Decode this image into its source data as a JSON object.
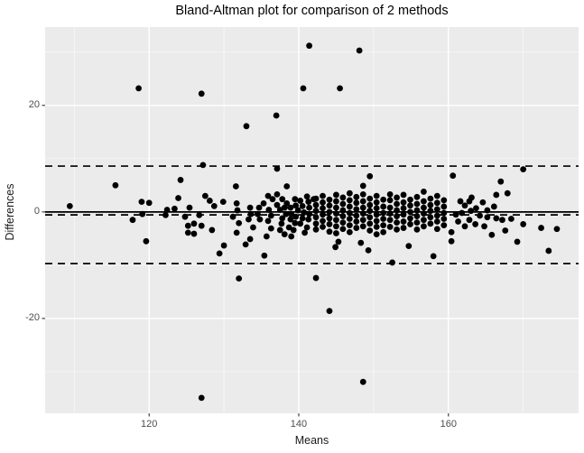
{
  "chart_data": {
    "type": "scatter",
    "title": "Bland-Altman plot for comparison of 2 methods",
    "xlabel": "Means",
    "ylabel": "Differences",
    "xlim": [
      106.1,
      177.4
    ],
    "ylim": [
      -37.8,
      34.7
    ],
    "x_major_ticks": [
      120,
      140,
      160
    ],
    "x_minor_ticks": [
      110,
      130,
      150,
      170
    ],
    "y_major_ticks": [
      20,
      0,
      -20
    ],
    "y_minor_ticks": [
      30,
      10,
      -10,
      -30
    ],
    "grid": true,
    "legend_position": "none",
    "reference_lines": {
      "zero_line": {
        "y": 0,
        "style": "solid"
      },
      "mean_difference": {
        "y": -0.55,
        "style": "dashed"
      },
      "upper_limit_of_agreement": {
        "y": 8.6,
        "style": "dashed"
      },
      "lower_limit_of_agreement": {
        "y": -9.7,
        "style": "dashed"
      }
    },
    "points": [
      [
        141.4,
        31.2
      ],
      [
        148.1,
        30.3
      ],
      [
        118.6,
        23.2
      ],
      [
        140.6,
        23.2
      ],
      [
        145.5,
        23.2
      ],
      [
        127.0,
        22.2
      ],
      [
        137.0,
        18.1
      ],
      [
        133.0,
        16.1
      ],
      [
        127.2,
        8.8
      ],
      [
        137.1,
        8.1
      ],
      [
        170.0,
        8.0
      ],
      [
        149.5,
        6.7
      ],
      [
        160.6,
        6.8
      ],
      [
        167.0,
        5.7
      ],
      [
        124.2,
        6.0
      ],
      [
        115.5,
        5.0
      ],
      [
        131.6,
        4.8
      ],
      [
        138.4,
        4.8
      ],
      [
        148.6,
        4.9
      ],
      [
        109.4,
        1.1
      ],
      [
        132.0,
        -12.5
      ],
      [
        142.3,
        -12.4
      ],
      [
        144.1,
        -18.6
      ],
      [
        148.6,
        -31.9
      ],
      [
        127.0,
        -34.9
      ],
      [
        152.5,
        -9.5
      ],
      [
        158.0,
        -8.3
      ],
      [
        135.4,
        -8.2
      ],
      [
        129.4,
        -7.8
      ],
      [
        173.4,
        -7.3
      ],
      [
        149.3,
        -7.2
      ],
      [
        119.6,
        -5.5
      ],
      [
        130.0,
        -6.3
      ],
      [
        132.9,
        -6.1
      ],
      [
        144.9,
        -6.6
      ],
      [
        145.3,
        -5.6
      ],
      [
        148.3,
        -5.8
      ],
      [
        154.7,
        -6.4
      ],
      [
        169.2,
        -5.6
      ],
      [
        117.8,
        -1.5
      ],
      [
        119.0,
        1.9
      ],
      [
        119.1,
        -0.4
      ],
      [
        120.0,
        1.7
      ],
      [
        122.2,
        -0.6
      ],
      [
        122.4,
        0.4
      ],
      [
        123.4,
        0.6
      ],
      [
        123.9,
        2.6
      ],
      [
        124.8,
        -0.9
      ],
      [
        125.2,
        -2.6
      ],
      [
        125.2,
        -3.9
      ],
      [
        125.4,
        0.8
      ],
      [
        126.0,
        -2.2
      ],
      [
        126.0,
        -4.1
      ],
      [
        126.7,
        -0.6
      ],
      [
        127.0,
        -2.6
      ],
      [
        127.5,
        3.0
      ],
      [
        128.1,
        2.1
      ],
      [
        128.4,
        -3.4
      ],
      [
        128.7,
        1.1
      ],
      [
        129.9,
        1.9
      ],
      [
        131.2,
        -0.9
      ],
      [
        131.7,
        1.6
      ],
      [
        131.8,
        0.3
      ],
      [
        131.7,
        -3.9
      ],
      [
        132.0,
        -2.1
      ],
      [
        133.3,
        -1.4
      ],
      [
        133.5,
        0.8
      ],
      [
        133.5,
        -5.1
      ],
      [
        133.6,
        -0.4
      ],
      [
        133.9,
        -2.9
      ],
      [
        134.5,
        -0.4
      ],
      [
        134.7,
        0.8
      ],
      [
        134.8,
        -1.4
      ],
      [
        135.3,
        1.6
      ],
      [
        135.7,
        -4.6
      ],
      [
        135.9,
        3.0
      ],
      [
        135.9,
        -1.7
      ],
      [
        136.0,
        0.4
      ],
      [
        136.3,
        -0.7
      ],
      [
        136.3,
        -3.1
      ],
      [
        136.5,
        2.4
      ],
      [
        137.1,
        3.3
      ],
      [
        137.1,
        1.3
      ],
      [
        137.5,
        0.4
      ],
      [
        137.5,
        -3.4
      ],
      [
        137.7,
        -2.2
      ],
      [
        137.8,
        2.4
      ],
      [
        137.8,
        -1.2
      ],
      [
        138.1,
        0.8
      ],
      [
        138.1,
        -4.2
      ],
      [
        138.3,
        -0.4
      ],
      [
        138.4,
        1.6
      ],
      [
        138.7,
        -2.9
      ],
      [
        138.9,
        0.8
      ],
      [
        138.9,
        -1.4
      ],
      [
        139.0,
        -0.4
      ],
      [
        139.0,
        -4.6
      ],
      [
        139.3,
        -3.4
      ],
      [
        139.5,
        2.4
      ],
      [
        139.5,
        -2.1
      ],
      [
        139.6,
        1.2
      ],
      [
        139.6,
        -0.9
      ],
      [
        139.9,
        0.3
      ],
      [
        140.2,
        2.1
      ],
      [
        140.2,
        -2.2
      ],
      [
        140.5,
        1.1
      ],
      [
        140.5,
        -1.2
      ],
      [
        140.7,
        -0.1
      ],
      [
        140.8,
        -3.9
      ],
      [
        141.1,
        2.9
      ],
      [
        141.1,
        -2.9
      ],
      [
        141.3,
        1.9
      ],
      [
        141.3,
        -1.4
      ],
      [
        141.4,
        0.8
      ],
      [
        141.4,
        -0.4
      ],
      [
        142.0,
        2.4
      ],
      [
        142.3,
        2.5
      ],
      [
        142.3,
        1.3
      ],
      [
        142.3,
        0.2
      ],
      [
        142.3,
        -1.0
      ],
      [
        142.3,
        -2.2
      ],
      [
        142.3,
        -3.3
      ],
      [
        143.2,
        3.0
      ],
      [
        143.2,
        1.8
      ],
      [
        143.2,
        0.7
      ],
      [
        143.2,
        -0.5
      ],
      [
        143.2,
        -1.7
      ],
      [
        143.2,
        -2.8
      ],
      [
        144.1,
        2.3
      ],
      [
        144.1,
        1.2
      ],
      [
        144.1,
        0.0
      ],
      [
        144.1,
        -1.2
      ],
      [
        144.1,
        -2.3
      ],
      [
        144.1,
        -3.7
      ],
      [
        145.0,
        3.2
      ],
      [
        145.0,
        2.0
      ],
      [
        145.0,
        0.8
      ],
      [
        145.0,
        -0.3
      ],
      [
        145.0,
        -1.5
      ],
      [
        145.0,
        -2.7
      ],
      [
        145.0,
        -4.0
      ],
      [
        145.9,
        2.7
      ],
      [
        145.9,
        1.5
      ],
      [
        145.9,
        0.3
      ],
      [
        145.9,
        -0.8
      ],
      [
        145.9,
        -2.0
      ],
      [
        145.9,
        -3.2
      ],
      [
        146.8,
        3.5
      ],
      [
        146.8,
        2.2
      ],
      [
        146.8,
        1.0
      ],
      [
        146.8,
        -0.2
      ],
      [
        146.8,
        -1.3
      ],
      [
        146.8,
        -2.5
      ],
      [
        146.8,
        -3.8
      ],
      [
        147.7,
        2.8
      ],
      [
        147.7,
        1.7
      ],
      [
        147.7,
        0.5
      ],
      [
        147.7,
        -0.7
      ],
      [
        147.7,
        -1.8
      ],
      [
        147.7,
        -3.0
      ],
      [
        148.6,
        3.3
      ],
      [
        148.6,
        2.0
      ],
      [
        148.6,
        0.8
      ],
      [
        148.6,
        -0.3
      ],
      [
        148.6,
        -1.5
      ],
      [
        148.6,
        -2.7
      ],
      [
        149.5,
        2.5
      ],
      [
        149.5,
        1.3
      ],
      [
        149.5,
        0.2
      ],
      [
        149.5,
        -1.0
      ],
      [
        149.5,
        -2.2
      ],
      [
        149.5,
        -3.5
      ],
      [
        150.4,
        3.0
      ],
      [
        150.4,
        1.8
      ],
      [
        150.4,
        0.7
      ],
      [
        150.4,
        -0.5
      ],
      [
        150.4,
        -1.7
      ],
      [
        150.4,
        -2.8
      ],
      [
        150.4,
        -4.2
      ],
      [
        151.3,
        2.3
      ],
      [
        151.3,
        1.0
      ],
      [
        151.3,
        -0.2
      ],
      [
        151.3,
        -1.3
      ],
      [
        151.3,
        -2.5
      ],
      [
        151.3,
        -3.8
      ],
      [
        152.2,
        3.3
      ],
      [
        152.2,
        2.2
      ],
      [
        152.2,
        0.8
      ],
      [
        152.2,
        -0.3
      ],
      [
        152.2,
        -1.5
      ],
      [
        152.2,
        -2.8
      ],
      [
        153.1,
        2.7
      ],
      [
        153.1,
        1.5
      ],
      [
        153.1,
        0.3
      ],
      [
        153.1,
        -0.8
      ],
      [
        153.1,
        -2.0
      ],
      [
        153.1,
        -3.3
      ],
      [
        154.0,
        3.2
      ],
      [
        154.0,
        1.8
      ],
      [
        154.0,
        0.7
      ],
      [
        154.0,
        -0.5
      ],
      [
        154.0,
        -1.8
      ],
      [
        154.0,
        -3.0
      ],
      [
        154.9,
        2.3
      ],
      [
        154.9,
        1.2
      ],
      [
        154.9,
        0.0
      ],
      [
        154.9,
        -1.2
      ],
      [
        154.9,
        -2.3
      ],
      [
        155.8,
        2.8
      ],
      [
        155.8,
        1.5
      ],
      [
        155.8,
        0.3
      ],
      [
        155.8,
        -0.8
      ],
      [
        155.8,
        -2.0
      ],
      [
        155.8,
        -3.3
      ],
      [
        156.7,
        3.8
      ],
      [
        156.7,
        2.0
      ],
      [
        156.7,
        0.8
      ],
      [
        156.7,
        -0.3
      ],
      [
        156.7,
        -1.5
      ],
      [
        156.7,
        -2.7
      ],
      [
        157.6,
        2.5
      ],
      [
        157.6,
        1.3
      ],
      [
        157.6,
        0.2
      ],
      [
        157.6,
        -1.0
      ],
      [
        157.6,
        -2.2
      ],
      [
        158.5,
        3.0
      ],
      [
        158.5,
        1.7
      ],
      [
        158.5,
        0.5
      ],
      [
        158.5,
        -0.7
      ],
      [
        158.5,
        -1.8
      ],
      [
        158.5,
        -3.2
      ],
      [
        159.4,
        2.2
      ],
      [
        159.4,
        1.0
      ],
      [
        159.4,
        -0.2
      ],
      [
        159.4,
        -1.3
      ],
      [
        159.4,
        -2.5
      ],
      [
        160.4,
        -3.8
      ],
      [
        160.4,
        -5.5
      ],
      [
        161.0,
        -0.5
      ],
      [
        161.3,
        -1.8
      ],
      [
        161.6,
        2.0
      ],
      [
        161.8,
        -0.2
      ],
      [
        162.2,
        1.2
      ],
      [
        162.2,
        -2.7
      ],
      [
        162.8,
        2.0
      ],
      [
        162.8,
        -1.5
      ],
      [
        163.0,
        0.2
      ],
      [
        163.1,
        2.7
      ],
      [
        163.6,
        -2.3
      ],
      [
        163.7,
        0.7
      ],
      [
        164.2,
        -0.7
      ],
      [
        164.6,
        1.8
      ],
      [
        164.8,
        -2.7
      ],
      [
        165.2,
        0.3
      ],
      [
        165.2,
        -1.0
      ],
      [
        165.8,
        -4.3
      ],
      [
        166.1,
        1.0
      ],
      [
        166.4,
        3.2
      ],
      [
        166.4,
        -1.2
      ],
      [
        167.2,
        -1.5
      ],
      [
        167.6,
        -3.5
      ],
      [
        167.9,
        3.5
      ],
      [
        168.4,
        -1.3
      ],
      [
        170.0,
        -2.3
      ],
      [
        172.4,
        -3.0
      ],
      [
        174.5,
        -3.2
      ]
    ]
  },
  "colors": {
    "page_background": "#ffffff",
    "panel_background": "#ebebeb",
    "grid_major": "#ffffff",
    "grid_minor": "#ffffff",
    "point": "#000000",
    "reference_line": "#000000",
    "tick_mark": "#333333",
    "tick_text": "#4d4d4d",
    "axis_title_text": "#1a1a1a",
    "title_text": "#000000"
  }
}
